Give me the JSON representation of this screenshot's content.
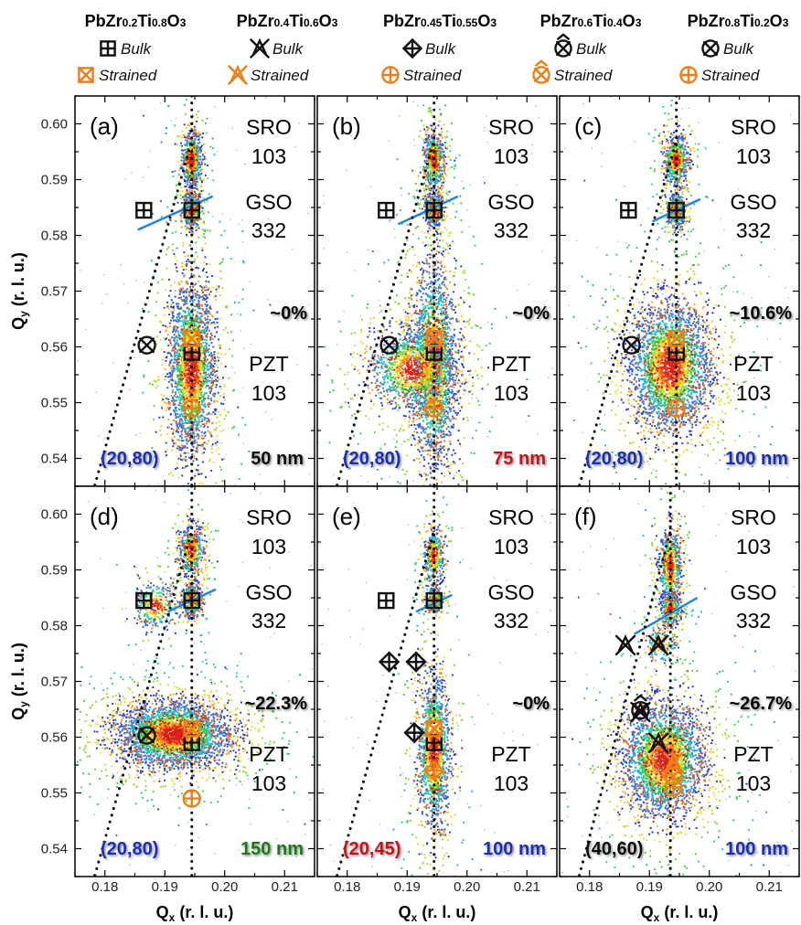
{
  "colors": {
    "bulk_marker": "#111111",
    "strained_marker": "#ef7d1a",
    "blue_label": "#1e2fb4",
    "red_label": "#c0141c",
    "green_label": "#1d7a12",
    "black_label": "#111111",
    "dotted_line": "#000000"
  },
  "legend": [
    {
      "formula_html": "PbZr<tspan font-size='12'>0.2</tspan>Ti<tspan font-size='12'>0.8</tspan>O<tspan font-size='12'>3</tspan>",
      "formula": "PbZr0.2Ti0.8O3",
      "bulk_label": "Bulk",
      "strained_label": "Strained",
      "marker": "square-plus"
    },
    {
      "formula": "PbZr0.4Ti0.6O3",
      "bulk_label": "Bulk",
      "strained_label": "Strained",
      "marker": "triangle-x"
    },
    {
      "formula": "PbZr0.45Ti0.55O3",
      "bulk_label": "Bulk",
      "strained_label": "Strained",
      "marker": "diamond-plus"
    },
    {
      "formula": "PbZr0.6Ti0.4O3",
      "bulk_label": "Bulk",
      "strained_label": "Strained",
      "marker": "circle-x-hat"
    },
    {
      "formula": "PbZr0.8Ti0.2O3",
      "bulk_label": "Bulk",
      "strained_label": "Strained",
      "marker": "circle-x"
    }
  ],
  "axes": {
    "xlabel": "Qx (r. l. u.)",
    "ylabel": "Qy (r. l. u.)",
    "x_ticks": [
      "0.18",
      "0.19",
      "0.20",
      "0.21"
    ],
    "y_ticks": [
      "0.54",
      "0.55",
      "0.56",
      "0.57",
      "0.58",
      "0.59",
      "0.60"
    ]
  },
  "chart_data": [
    {
      "type": "heatmap",
      "panel": "(a)",
      "xlim": [
        0.175,
        0.215
      ],
      "ylim": [
        0.535,
        0.605
      ],
      "peaks": [
        "SRO 103",
        "GSO 332",
        "PZT 103"
      ],
      "relaxation": "~0%",
      "composition_label": "(20,80)",
      "composition_color": "blue",
      "thickness_label": "50 nm",
      "thickness_color": "black",
      "spots": [
        {
          "x": 0.1945,
          "y": 0.5935,
          "sx": 0.0008,
          "sy": 0.0025,
          "n": 700
        },
        {
          "x": 0.1945,
          "y": 0.5845,
          "sx": 0.0007,
          "sy": 0.0015,
          "n": 450
        },
        {
          "x": 0.1945,
          "y": 0.556,
          "sx": 0.0018,
          "sy": 0.0075,
          "n": 2600
        }
      ],
      "streak": [
        [
          0.1855,
          0.581
        ],
        [
          0.198,
          0.587
        ]
      ],
      "markers": [
        {
          "type": "square-plus",
          "style": "bulk",
          "x": 0.1865,
          "y": 0.5845
        },
        {
          "type": "square-plus",
          "style": "bulk",
          "x": 0.1945,
          "y": 0.5845
        },
        {
          "type": "square-plus",
          "style": "bulk",
          "x": 0.1945,
          "y": 0.559
        },
        {
          "type": "square-x",
          "style": "strained",
          "x": 0.1945,
          "y": 0.5615
        },
        {
          "type": "circle-x",
          "style": "bulk",
          "x": 0.187,
          "y": 0.5603
        },
        {
          "type": "circle-plus",
          "style": "strained",
          "x": 0.1945,
          "y": 0.549
        }
      ],
      "diag_line": [
        [
          0.178,
          0.534
        ],
        [
          0.1945,
          0.597
        ]
      ]
    },
    {
      "type": "heatmap",
      "panel": "(b)",
      "xlim": [
        0.175,
        0.215
      ],
      "ylim": [
        0.535,
        0.605
      ],
      "peaks": [
        "SRO 103",
        "GSO 332",
        "PZT 103"
      ],
      "relaxation": "~0%",
      "composition_label": "(20,80)",
      "composition_color": "blue",
      "thickness_label": "75 nm",
      "thickness_color": "red",
      "spots": [
        {
          "x": 0.1945,
          "y": 0.5935,
          "sx": 0.0008,
          "sy": 0.0025,
          "n": 650
        },
        {
          "x": 0.1945,
          "y": 0.5845,
          "sx": 0.0007,
          "sy": 0.0015,
          "n": 450
        },
        {
          "x": 0.1945,
          "y": 0.557,
          "sx": 0.0018,
          "sy": 0.0085,
          "n": 2300
        },
        {
          "x": 0.191,
          "y": 0.556,
          "sx": 0.0035,
          "sy": 0.0035,
          "n": 1400
        }
      ],
      "streak": [
        [
          0.1885,
          0.582
        ],
        [
          0.1985,
          0.587
        ]
      ],
      "markers": [
        {
          "type": "square-plus",
          "style": "bulk",
          "x": 0.1865,
          "y": 0.5845
        },
        {
          "type": "square-plus",
          "style": "bulk",
          "x": 0.1945,
          "y": 0.5845
        },
        {
          "type": "square-plus",
          "style": "bulk",
          "x": 0.1945,
          "y": 0.559
        },
        {
          "type": "square-x",
          "style": "strained",
          "x": 0.1945,
          "y": 0.5615
        },
        {
          "type": "circle-x",
          "style": "bulk",
          "x": 0.187,
          "y": 0.5603
        },
        {
          "type": "circle-plus",
          "style": "strained",
          "x": 0.1945,
          "y": 0.549
        }
      ],
      "diag_line": [
        [
          0.178,
          0.534
        ],
        [
          0.1945,
          0.597
        ]
      ]
    },
    {
      "type": "heatmap",
      "panel": "(c)",
      "xlim": [
        0.175,
        0.215
      ],
      "ylim": [
        0.535,
        0.605
      ],
      "peaks": [
        "SRO 103",
        "GSO 332",
        "PZT 103"
      ],
      "relaxation": "~10.6%",
      "composition_label": "(20,80)",
      "composition_color": "blue",
      "thickness_label": "100 nm",
      "thickness_color": "blue",
      "spots": [
        {
          "x": 0.1945,
          "y": 0.5935,
          "sx": 0.001,
          "sy": 0.0022,
          "n": 650
        },
        {
          "x": 0.1945,
          "y": 0.5845,
          "sx": 0.0007,
          "sy": 0.0015,
          "n": 400
        },
        {
          "x": 0.1935,
          "y": 0.5565,
          "sx": 0.0032,
          "sy": 0.0055,
          "n": 3200
        }
      ],
      "streak": [
        [
          0.1905,
          0.5825
        ],
        [
          0.1985,
          0.5865
        ]
      ],
      "markers": [
        {
          "type": "square-plus",
          "style": "bulk",
          "x": 0.1865,
          "y": 0.5845
        },
        {
          "type": "square-plus",
          "style": "bulk",
          "x": 0.1945,
          "y": 0.5845
        },
        {
          "type": "square-plus",
          "style": "bulk",
          "x": 0.1945,
          "y": 0.559
        },
        {
          "type": "square-x",
          "style": "strained",
          "x": 0.1945,
          "y": 0.5615
        },
        {
          "type": "circle-x",
          "style": "bulk",
          "x": 0.187,
          "y": 0.5603
        },
        {
          "type": "circle-plus",
          "style": "strained",
          "x": 0.1945,
          "y": 0.549
        }
      ],
      "diag_line": [
        [
          0.178,
          0.534
        ],
        [
          0.1945,
          0.597
        ]
      ]
    },
    {
      "type": "heatmap",
      "panel": "(d)",
      "xlim": [
        0.175,
        0.215
      ],
      "ylim": [
        0.535,
        0.605
      ],
      "peaks": [
        "SRO 103",
        "GSO 332",
        "PZT 103"
      ],
      "relaxation": "~22.3%",
      "composition_label": "(20,80)",
      "composition_color": "blue",
      "thickness_label": "150 nm",
      "thickness_color": "green",
      "spots": [
        {
          "x": 0.1945,
          "y": 0.5935,
          "sx": 0.001,
          "sy": 0.0022,
          "n": 550
        },
        {
          "x": 0.1945,
          "y": 0.5845,
          "sx": 0.0008,
          "sy": 0.0015,
          "n": 400
        },
        {
          "x": 0.1885,
          "y": 0.5835,
          "sx": 0.0018,
          "sy": 0.002,
          "n": 350
        },
        {
          "x": 0.1915,
          "y": 0.5605,
          "sx": 0.0045,
          "sy": 0.0028,
          "n": 3400
        }
      ],
      "streak": [
        [
          0.1905,
          0.5825
        ],
        [
          0.1985,
          0.5865
        ]
      ],
      "markers": [
        {
          "type": "square-plus",
          "style": "bulk",
          "x": 0.1865,
          "y": 0.5845
        },
        {
          "type": "square-plus",
          "style": "bulk",
          "x": 0.1945,
          "y": 0.5845
        },
        {
          "type": "square-plus",
          "style": "bulk",
          "x": 0.1945,
          "y": 0.559
        },
        {
          "type": "square-x",
          "style": "strained",
          "x": 0.1945,
          "y": 0.5615
        },
        {
          "type": "circle-x",
          "style": "bulk",
          "x": 0.187,
          "y": 0.5603
        },
        {
          "type": "circle-plus",
          "style": "strained",
          "x": 0.1945,
          "y": 0.549
        }
      ],
      "diag_line": [
        [
          0.178,
          0.534
        ],
        [
          0.1945,
          0.597
        ]
      ]
    },
    {
      "type": "heatmap",
      "panel": "(e)",
      "xlim": [
        0.175,
        0.215
      ],
      "ylim": [
        0.535,
        0.605
      ],
      "peaks": [
        "SRO 103",
        "GSO 332",
        "PZT 103"
      ],
      "relaxation": "~0%",
      "composition_label": "(20,45)",
      "composition_color": "red",
      "thickness_label": "100 nm",
      "thickness_color": "blue",
      "spots": [
        {
          "x": 0.1945,
          "y": 0.5925,
          "sx": 0.0008,
          "sy": 0.0022,
          "n": 420
        },
        {
          "x": 0.1945,
          "y": 0.5845,
          "sx": 0.0007,
          "sy": 0.0012,
          "n": 300
        },
        {
          "x": 0.1945,
          "y": 0.5575,
          "sx": 0.0013,
          "sy": 0.0065,
          "n": 1500
        }
      ],
      "streak": [
        [
          0.1915,
          0.5825
        ],
        [
          0.1975,
          0.5855
        ]
      ],
      "markers": [
        {
          "type": "square-plus",
          "style": "bulk",
          "x": 0.1865,
          "y": 0.5845
        },
        {
          "type": "square-plus",
          "style": "bulk",
          "x": 0.1945,
          "y": 0.5845
        },
        {
          "type": "square-plus",
          "style": "bulk",
          "x": 0.1945,
          "y": 0.559
        },
        {
          "type": "square-x",
          "style": "strained",
          "x": 0.1945,
          "y": 0.5615
        },
        {
          "type": "diamond-plus",
          "style": "bulk",
          "x": 0.187,
          "y": 0.5735
        },
        {
          "type": "diamond-plus",
          "style": "bulk",
          "x": 0.1915,
          "y": 0.5735
        },
        {
          "type": "diamond-plus",
          "style": "bulk",
          "x": 0.1912,
          "y": 0.5608
        },
        {
          "type": "diamond-plus",
          "style": "strained",
          "x": 0.1945,
          "y": 0.554
        }
      ],
      "diag_line": [
        [
          0.178,
          0.534
        ],
        [
          0.1945,
          0.597
        ]
      ]
    },
    {
      "type": "heatmap",
      "panel": "(f)",
      "xlim": [
        0.175,
        0.215
      ],
      "ylim": [
        0.535,
        0.605
      ],
      "peaks": [
        "SRO 103",
        "GSO 332",
        "PZT 103"
      ],
      "relaxation": "~26.7%",
      "composition_label": "(40,60)",
      "composition_color": "black",
      "thickness_label": "100 nm",
      "thickness_color": "blue",
      "spots": [
        {
          "x": 0.1935,
          "y": 0.5905,
          "sx": 0.0009,
          "sy": 0.0035,
          "n": 700
        },
        {
          "x": 0.1935,
          "y": 0.583,
          "sx": 0.0008,
          "sy": 0.0015,
          "n": 350
        },
        {
          "x": 0.1925,
          "y": 0.556,
          "sx": 0.0032,
          "sy": 0.0048,
          "n": 3000
        },
        {
          "x": 0.192,
          "y": 0.5765,
          "sx": 0.0012,
          "sy": 0.0015,
          "n": 150
        }
      ],
      "streak": [
        [
          0.1875,
          0.5785
        ],
        [
          0.198,
          0.585
        ]
      ],
      "markers": [
        {
          "type": "triangle-x",
          "style": "bulk",
          "x": 0.186,
          "y": 0.5765
        },
        {
          "type": "triangle-x",
          "style": "bulk",
          "x": 0.1915,
          "y": 0.5765
        },
        {
          "type": "triangle-x",
          "style": "bulk",
          "x": 0.1885,
          "y": 0.5645
        },
        {
          "type": "triangle-x",
          "style": "bulk",
          "x": 0.1915,
          "y": 0.559
        },
        {
          "type": "triangle-x",
          "style": "strained",
          "x": 0.194,
          "y": 0.5555
        },
        {
          "type": "circle-x-hat",
          "style": "bulk",
          "x": 0.1885,
          "y": 0.5648
        },
        {
          "type": "circle-x-hat",
          "style": "strained",
          "x": 0.194,
          "y": 0.553
        },
        {
          "type": "circle-plus",
          "style": "strained",
          "x": 0.194,
          "y": 0.551
        }
      ],
      "diag_line": [
        [
          0.178,
          0.534
        ],
        [
          0.1935,
          0.597
        ]
      ]
    }
  ]
}
